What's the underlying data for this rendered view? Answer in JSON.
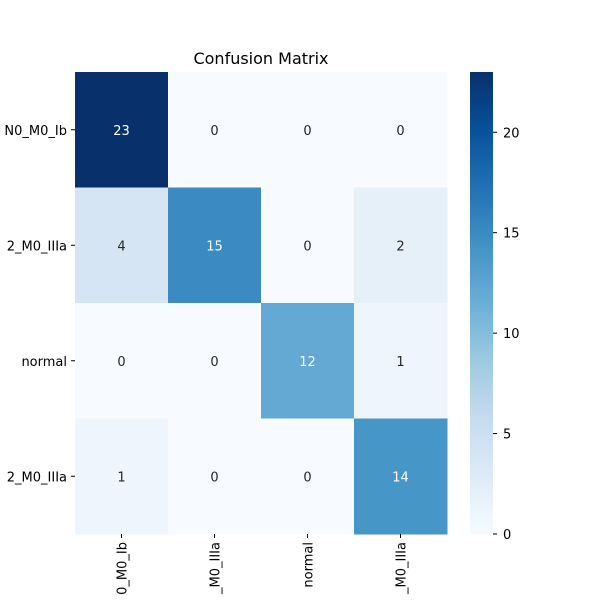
{
  "chart_data": {
    "type": "heatmap",
    "title": "Confusion Matrix",
    "xlabel": "",
    "ylabel": "",
    "x_tick_labels_visible": [
      "0_M0_Ib",
      "_M0_IIIa",
      "normal",
      "_M0_IIIa"
    ],
    "y_tick_labels_visible": [
      "N0_M0_Ib",
      "2_M0_IIIa",
      "normal",
      "2_M0_IIIa"
    ],
    "matrix": [
      [
        23,
        0,
        0,
        0
      ],
      [
        4,
        15,
        0,
        2
      ],
      [
        0,
        0,
        12,
        1
      ],
      [
        1,
        0,
        0,
        14
      ]
    ],
    "colormap": "Blues",
    "vmin": 0,
    "vmax": 23,
    "colorbar": {
      "ticks": [
        0,
        5,
        10,
        15,
        20
      ]
    },
    "annotation_color_light": "#ffffff",
    "annotation_color_dark": "#262626"
  }
}
